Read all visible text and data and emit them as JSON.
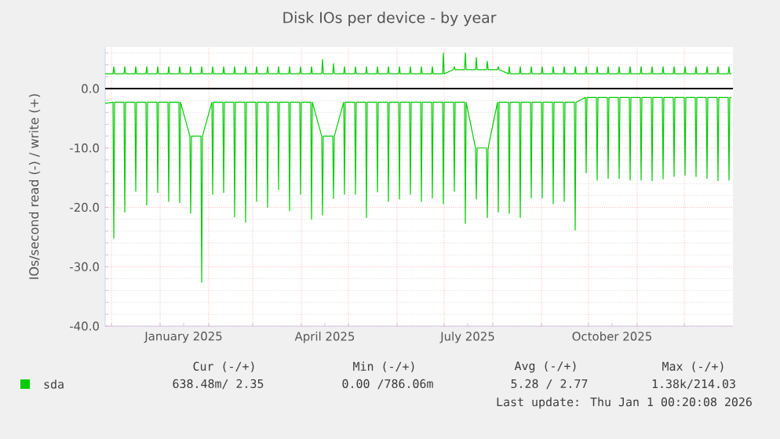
{
  "chart_data": {
    "type": "line",
    "title": "Disk IOs per device - by year",
    "ylabel": "IOs/second read (-) / write (+)",
    "x": [
      "2024-11-27",
      "2024-12-02",
      "2024-12-02T12:00",
      "2024-12-03",
      "2024-12-09",
      "2024-12-09T12:00",
      "2024-12-10",
      "2024-12-16",
      "2024-12-16T12:00",
      "2024-12-17",
      "2024-12-23",
      "2024-12-23T12:00",
      "2024-12-24",
      "2024-12-30",
      "2024-12-30T12:00",
      "2024-12-31",
      "2025-01-06",
      "2025-01-06T12:00",
      "2025-01-07",
      "2025-01-13",
      "2025-01-13T12:00",
      "2025-01-14",
      "2025-01-20",
      "2025-01-20T12:00",
      "2025-01-21",
      "2025-01-27",
      "2025-01-27T12:00",
      "2025-01-28",
      "2025-02-03",
      "2025-02-03T12:00",
      "2025-02-04",
      "2025-02-10",
      "2025-02-10T12:00",
      "2025-02-11",
      "2025-02-17",
      "2025-02-17T12:00",
      "2025-02-18",
      "2025-02-24",
      "2025-02-24T12:00",
      "2025-02-25",
      "2025-03-03",
      "2025-03-03T12:00",
      "2025-03-04",
      "2025-03-10",
      "2025-03-10T12:00",
      "2025-03-11",
      "2025-03-17",
      "2025-03-17T12:00",
      "2025-03-18",
      "2025-03-24",
      "2025-03-24T12:00",
      "2025-03-25",
      "2025-03-31",
      "2025-03-31T12:00",
      "2025-04-01",
      "2025-04-07",
      "2025-04-07T12:00",
      "2025-04-08",
      "2025-04-14",
      "2025-04-14T12:00",
      "2025-04-15",
      "2025-04-21",
      "2025-04-21T12:00",
      "2025-04-22",
      "2025-04-28",
      "2025-04-28T12:00",
      "2025-04-29",
      "2025-05-05",
      "2025-05-05T12:00",
      "2025-05-06",
      "2025-05-12",
      "2025-05-12T12:00",
      "2025-05-13",
      "2025-05-19",
      "2025-05-19T12:00",
      "2025-05-20",
      "2025-05-26",
      "2025-05-26T12:00",
      "2025-05-27",
      "2025-06-02",
      "2025-06-02T12:00",
      "2025-06-03",
      "2025-06-09",
      "2025-06-09T12:00",
      "2025-06-10",
      "2025-06-16",
      "2025-06-16T12:00",
      "2025-06-17",
      "2025-06-23",
      "2025-06-23T12:00",
      "2025-06-24",
      "2025-06-30",
      "2025-06-30T12:00",
      "2025-07-01",
      "2025-07-07",
      "2025-07-07T12:00",
      "2025-07-08",
      "2025-07-14",
      "2025-07-14T12:00",
      "2025-07-15",
      "2025-07-21",
      "2025-07-21T12:00",
      "2025-07-22",
      "2025-07-28",
      "2025-07-28T12:00",
      "2025-07-29",
      "2025-08-04",
      "2025-08-04T12:00",
      "2025-08-05",
      "2025-08-11",
      "2025-08-11T12:00",
      "2025-08-12",
      "2025-08-18",
      "2025-08-18T12:00",
      "2025-08-19",
      "2025-08-25",
      "2025-08-25T12:00",
      "2025-08-26",
      "2025-09-01",
      "2025-09-01T12:00",
      "2025-09-02",
      "2025-09-08",
      "2025-09-08T12:00",
      "2025-09-09",
      "2025-09-15",
      "2025-09-15T12:00",
      "2025-09-16",
      "2025-09-22",
      "2025-09-22T12:00",
      "2025-09-23",
      "2025-09-29",
      "2025-09-29T12:00",
      "2025-09-30",
      "2025-10-06",
      "2025-10-06T12:00",
      "2025-10-07",
      "2025-10-13",
      "2025-10-13T12:00",
      "2025-10-14",
      "2025-10-20",
      "2025-10-20T12:00",
      "2025-10-21",
      "2025-10-27",
      "2025-10-27T12:00",
      "2025-10-28",
      "2025-11-03",
      "2025-11-03T12:00",
      "2025-11-04",
      "2025-11-10",
      "2025-11-10T12:00",
      "2025-11-11",
      "2025-11-17",
      "2025-11-17T12:00",
      "2025-11-18",
      "2025-11-24",
      "2025-11-24T12:00",
      "2025-11-25",
      "2025-12-01",
      "2025-12-01T12:00",
      "2025-12-02",
      "2025-12-08",
      "2025-12-08T12:00",
      "2025-12-09",
      "2025-12-15",
      "2025-12-15T12:00",
      "2025-12-16",
      "2025-12-22",
      "2025-12-22T12:00",
      "2025-12-23",
      "2025-12-29",
      "2025-12-29T12:00",
      "2025-12-30",
      "2025-12-31"
    ],
    "series": [
      {
        "name": "sda",
        "color": "#00cc00",
        "values": [
          -2.5,
          -2.3,
          -25.2,
          -2.3,
          -2.3,
          -20.8,
          -2.3,
          -2.3,
          -17.3,
          -2.3,
          -2.3,
          -19.6,
          -2.3,
          -2.3,
          -17.5,
          -2.3,
          -2.3,
          -19,
          -2.3,
          -2.3,
          -19.2,
          -2.3,
          -8,
          -21,
          -8,
          -8,
          -32.6,
          -8,
          -2.3,
          -17.8,
          -2.3,
          -2.3,
          -17.5,
          -2.3,
          -2.3,
          -21.6,
          -2.3,
          -2.3,
          -22.5,
          -2.3,
          -2.3,
          -19,
          -2.3,
          -2.3,
          -20,
          -2.3,
          -2.3,
          -17,
          -2.3,
          -2.3,
          -20.6,
          -2.3,
          -2.3,
          -17.8,
          -2.3,
          -2.3,
          -22,
          -2.3,
          -8,
          -21.3,
          -8,
          -8,
          -18.5,
          -8,
          -2.3,
          -17.8,
          -2.3,
          -2.3,
          -17.8,
          -2.3,
          -2.3,
          -21.7,
          -2.3,
          -2.3,
          -17.4,
          -2.3,
          -2.3,
          -19,
          -2.3,
          -2.3,
          -18.6,
          -2.3,
          -2.3,
          -17.8,
          -2.3,
          -2.3,
          -19,
          -2.3,
          -2.3,
          -18.4,
          -2.3,
          -2.3,
          -19.4,
          -2.3,
          -2.3,
          -17.3,
          -2.3,
          -2.3,
          -22.7,
          -2.3,
          -10,
          -18.6,
          -10,
          -10,
          -21.7,
          -10,
          -2.3,
          -20.8,
          -2.3,
          -2.3,
          -21,
          -2.3,
          -2.3,
          -21.7,
          -2.3,
          -2.3,
          -18.4,
          -2.3,
          -2.3,
          -18.4,
          -2.3,
          -2.3,
          -19.4,
          -2.3,
          -2.3,
          -19,
          -2.3,
          -2.3,
          -23.8,
          -2.3,
          -1.5,
          -14.2,
          -1.5,
          -1.5,
          -15.4,
          -1.5,
          -1.5,
          -15.1,
          -1.5,
          -1.5,
          -15.1,
          -1.5,
          -1.5,
          -15.4,
          -1.5,
          -1.5,
          -15.4,
          -1.5,
          -1.5,
          -15.5,
          -1.5,
          -1.5,
          -15.2,
          -1.5,
          -1.5,
          -14.8,
          -1.5,
          -1.5,
          -14.6,
          -1.5,
          -1.5,
          -14.8,
          -1.5,
          -1.5,
          -15.1,
          -1.5,
          -1.5,
          -15.5,
          -1.5,
          -1.5,
          -15.4,
          -1.5,
          -1.5
        ]
      },
      {
        "color": "#00cc00",
        "values": [
          2.5,
          2.5,
          3.7,
          2.5,
          2.5,
          3.7,
          2.5,
          2.5,
          3.7,
          2.5,
          2.5,
          3.7,
          2.5,
          2.5,
          3.7,
          2.5,
          2.5,
          3.7,
          2.5,
          2.5,
          3.7,
          2.5,
          2.5,
          3.7,
          2.5,
          2.5,
          3.7,
          2.5,
          2.5,
          3.7,
          2.5,
          2.5,
          3.7,
          2.5,
          2.5,
          3.7,
          2.5,
          2.5,
          3.7,
          2.5,
          2.5,
          3.7,
          2.5,
          2.5,
          3.7,
          2.5,
          2.5,
          3.7,
          2.5,
          2.5,
          3.7,
          2.5,
          2.5,
          3.7,
          2.5,
          2.5,
          3.7,
          2.5,
          2.5,
          4.9,
          2.5,
          2.5,
          4.2,
          2.5,
          2.5,
          3.7,
          2.5,
          2.5,
          3.7,
          2.5,
          2.5,
          3.7,
          2.5,
          2.5,
          3.7,
          2.5,
          2.5,
          3.7,
          2.5,
          2.5,
          3.7,
          2.5,
          2.5,
          3.7,
          2.5,
          2.5,
          3.7,
          2.5,
          2.5,
          3.7,
          2.5,
          2.5,
          6,
          2.5,
          3.2,
          3.7,
          3.2,
          3.2,
          6,
          3.2,
          3.2,
          5.2,
          3.2,
          3.2,
          4.6,
          3.2,
          3.2,
          3.7,
          3.2,
          2.5,
          3.7,
          2.5,
          2.5,
          3.7,
          2.5,
          2.5,
          3.7,
          2.5,
          2.5,
          3.7,
          2.5,
          2.5,
          3.7,
          2.5,
          2.5,
          3.7,
          2.5,
          2.5,
          3.7,
          2.5,
          2.5,
          3.7,
          2.5,
          2.5,
          3.7,
          2.5,
          2.5,
          3.7,
          2.5,
          2.5,
          3.7,
          2.5,
          2.5,
          3.7,
          2.5,
          2.5,
          3.7,
          2.5,
          2.5,
          3.7,
          2.5,
          2.5,
          3.7,
          2.5,
          2.5,
          3.7,
          2.5,
          2.5,
          3.7,
          2.5,
          2.5,
          3.7,
          2.5,
          2.5,
          3.7,
          2.5,
          2.5,
          3.7,
          2.5,
          2.5,
          3.7,
          2.5,
          2.5
        ]
      }
    ],
    "xlim": [
      "2024-11-27",
      "2026-01-01"
    ],
    "xticks": [
      {
        "value": "2024-12-01",
        "label": null
      },
      {
        "value": "2025-01-01",
        "label": null
      },
      {
        "value": "2025-01-16",
        "label": "January 2025"
      },
      {
        "value": "2025-02-01",
        "label": null
      },
      {
        "value": "2025-03-01",
        "label": null
      },
      {
        "value": "2025-04-01",
        "label": null
      },
      {
        "value": "2025-04-16",
        "label": "April 2025"
      },
      {
        "value": "2025-05-01",
        "label": null
      },
      {
        "value": "2025-06-01",
        "label": null
      },
      {
        "value": "2025-07-01",
        "label": null
      },
      {
        "value": "2025-07-16",
        "label": "July 2025"
      },
      {
        "value": "2025-08-01",
        "label": null
      },
      {
        "value": "2025-09-01",
        "label": null
      },
      {
        "value": "2025-10-01",
        "label": null
      },
      {
        "value": "2025-10-16",
        "label": "October 2025"
      },
      {
        "value": "2025-11-01",
        "label": null
      },
      {
        "value": "2025-12-01",
        "label": null
      }
    ],
    "ylim": [
      -40,
      7
    ],
    "yticks": [
      {
        "value": -40,
        "label": "-40.0"
      },
      {
        "value": -38,
        "label": null
      },
      {
        "value": -36,
        "label": null
      },
      {
        "value": -34,
        "label": null
      },
      {
        "value": -32,
        "label": null
      },
      {
        "value": -30,
        "label": "-30.0"
      },
      {
        "value": -28,
        "label": null
      },
      {
        "value": -26,
        "label": null
      },
      {
        "value": -24,
        "label": null
      },
      {
        "value": -22,
        "label": null
      },
      {
        "value": -20,
        "label": "-20.0"
      },
      {
        "value": -18,
        "label": null
      },
      {
        "value": -16,
        "label": null
      },
      {
        "value": -14,
        "label": null
      },
      {
        "value": -12,
        "label": null
      },
      {
        "value": -10,
        "label": "-10.0"
      },
      {
        "value": -8,
        "label": null
      },
      {
        "value": -6,
        "label": null
      },
      {
        "value": -4,
        "label": null
      },
      {
        "value": -2,
        "label": null
      },
      {
        "value": 0,
        "label": "0.0"
      },
      {
        "value": 2,
        "label": null
      },
      {
        "value": 4,
        "label": null
      },
      {
        "value": 6,
        "label": null
      }
    ],
    "grid": true,
    "ref_lines": [
      {
        "axis": "y",
        "value": 0,
        "color": "#000000"
      }
    ],
    "legend": "bottom",
    "annotations": [
      "Cur (-/+)",
      "Min (-/+)",
      "Avg (-/+)",
      "Max (-/+)",
      "638.48m/  2.35",
      "0.00 /786.06m",
      "5.28 /  2.77",
      "1.38k/214.03",
      "Last update:  Thu Jan  1 00:20:08 2026"
    ]
  }
}
